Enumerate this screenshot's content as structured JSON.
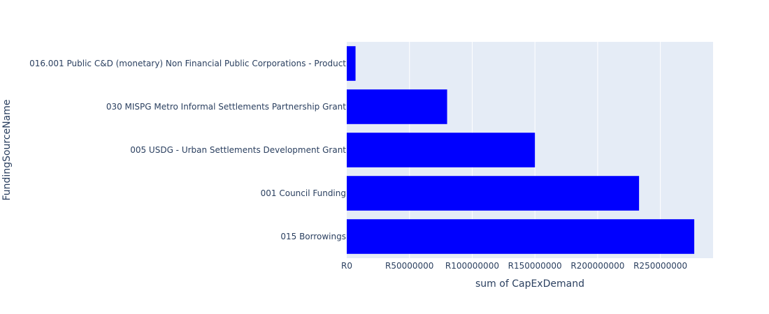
{
  "chart_data": {
    "type": "bar",
    "orientation": "horizontal",
    "xlabel": "sum of CapExDemand",
    "ylabel": "FundingSourceName",
    "xlim": [
      0,
      292000000
    ],
    "x_ticks": [
      0,
      50000000,
      100000000,
      150000000,
      200000000,
      250000000
    ],
    "x_tick_labels": [
      "R0",
      "R50000000",
      "R100000000",
      "R150000000",
      "R200000000",
      "R250000000"
    ],
    "categories": [
      "016.001 Public C&D (monetary) Non Financial Public Corporations - Product",
      "030 MISPG Metro Informal Settlements Partnership Grant",
      "005 USDG - Urban Settlements Development Grant",
      "001 Council Funding",
      "015 Borrowings"
    ],
    "values": [
      7000000,
      80000000,
      150000000,
      233000000,
      277000000
    ],
    "bar_color": "#0000ff",
    "plot_background": "#e5ecf6",
    "grid": true
  }
}
